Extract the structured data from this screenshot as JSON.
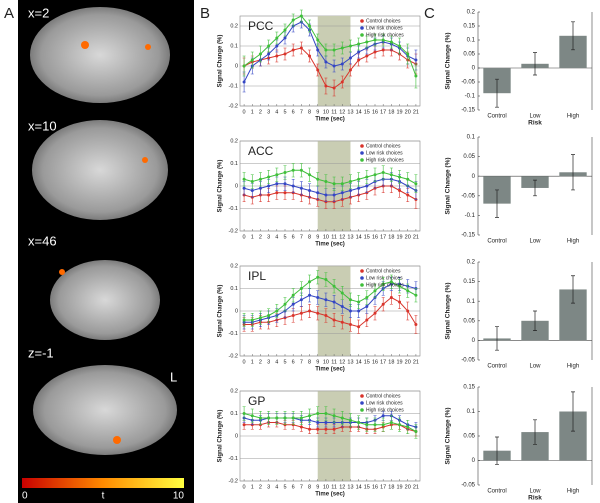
{
  "panel_labels": {
    "a": "A",
    "b": "B",
    "c": "C"
  },
  "panel_a": {
    "slices": [
      "x=2",
      "x=10",
      "x=46",
      "z=-1"
    ],
    "orientation_label": "L",
    "colorbar": {
      "min": 0,
      "label": "t",
      "max": 10
    }
  },
  "chart_data": [
    {
      "type": "line",
      "title": "PCC",
      "xlabel": "Time (sec)",
      "ylabel": "Signal Change (%)",
      "x": [
        0,
        1,
        2,
        3,
        4,
        5,
        6,
        7,
        8,
        9,
        10,
        11,
        12,
        13,
        14,
        15,
        16,
        17,
        18,
        19,
        20,
        21
      ],
      "xlim": [
        -0.5,
        21.5
      ],
      "xticks": [
        0,
        1,
        2,
        3,
        4,
        5,
        6,
        7,
        8,
        9,
        10,
        11,
        12,
        13,
        14,
        15,
        16,
        17,
        18,
        19,
        20,
        21
      ],
      "ylim": [
        -0.2,
        0.25
      ],
      "yticks": [
        -0.2,
        -0.1,
        0,
        0.1,
        0.2
      ],
      "grid": true,
      "shaded_span": [
        9,
        13
      ],
      "legend": "upper right",
      "series": [
        {
          "name": "Control choices",
          "color": "#d9342b",
          "values": [
            0,
            0.02,
            0.03,
            0.04,
            0.05,
            0.06,
            0.08,
            0.09,
            0.05,
            -0.02,
            -0.1,
            -0.11,
            -0.08,
            -0.02,
            0.03,
            0.05,
            0.07,
            0.08,
            0.08,
            0.06,
            0.03,
            0.01
          ],
          "errors": [
            0.04,
            0.03,
            0.03,
            0.03,
            0.03,
            0.03,
            0.03,
            0.03,
            0.03,
            0.03,
            0.04,
            0.04,
            0.03,
            0.03,
            0.03,
            0.03,
            0.03,
            0.03,
            0.03,
            0.03,
            0.04,
            0.05
          ]
        },
        {
          "name": "Low risk choices",
          "color": "#3446c4",
          "values": [
            -0.08,
            0,
            0.03,
            0.06,
            0.1,
            0.14,
            0.2,
            0.22,
            0.18,
            0.08,
            0.02,
            0,
            0.01,
            0.04,
            0.07,
            0.09,
            0.11,
            0.12,
            0.11,
            0.09,
            0.05,
            0.03
          ],
          "errors": [
            0.05,
            0.04,
            0.03,
            0.03,
            0.03,
            0.03,
            0.03,
            0.03,
            0.03,
            0.03,
            0.03,
            0.03,
            0.03,
            0.03,
            0.03,
            0.03,
            0.03,
            0.03,
            0.03,
            0.03,
            0.04,
            0.05
          ]
        },
        {
          "name": "High risk choices",
          "color": "#3fbf3a",
          "values": [
            0,
            0.03,
            0.06,
            0.1,
            0.14,
            0.18,
            0.23,
            0.25,
            0.2,
            0.13,
            0.08,
            0.08,
            0.09,
            0.1,
            0.11,
            0.12,
            0.13,
            0.13,
            0.12,
            0.1,
            0.06,
            -0.05
          ],
          "errors": [
            0.05,
            0.04,
            0.04,
            0.03,
            0.03,
            0.03,
            0.03,
            0.03,
            0.03,
            0.03,
            0.03,
            0.03,
            0.03,
            0.03,
            0.03,
            0.03,
            0.03,
            0.03,
            0.03,
            0.04,
            0.05,
            0.06
          ]
        }
      ]
    },
    {
      "type": "line",
      "title": "ACC",
      "xlabel": "Time (sec)",
      "ylabel": "Signal Change (%)",
      "x": [
        0,
        1,
        2,
        3,
        4,
        5,
        6,
        7,
        8,
        9,
        10,
        11,
        12,
        13,
        14,
        15,
        16,
        17,
        18,
        19,
        20,
        21
      ],
      "xlim": [
        -0.5,
        21.5
      ],
      "xticks": [
        0,
        1,
        2,
        3,
        4,
        5,
        6,
        7,
        8,
        9,
        10,
        11,
        12,
        13,
        14,
        15,
        16,
        17,
        18,
        19,
        20,
        21
      ],
      "ylim": [
        -0.2,
        0.2
      ],
      "yticks": [
        -0.2,
        -0.1,
        0,
        0.1,
        0.2
      ],
      "grid": true,
      "shaded_span": [
        9,
        13
      ],
      "legend": "upper right",
      "series": [
        {
          "name": "Control choices",
          "color": "#d9342b",
          "values": [
            -0.04,
            -0.05,
            -0.04,
            -0.04,
            -0.03,
            -0.03,
            -0.03,
            -0.04,
            -0.05,
            -0.06,
            -0.07,
            -0.07,
            -0.06,
            -0.05,
            -0.04,
            -0.03,
            -0.01,
            0,
            0,
            -0.02,
            -0.04,
            -0.06
          ],
          "errors": [
            0.03,
            0.03,
            0.03,
            0.03,
            0.03,
            0.03,
            0.03,
            0.03,
            0.03,
            0.03,
            0.03,
            0.03,
            0.03,
            0.03,
            0.03,
            0.03,
            0.03,
            0.03,
            0.03,
            0.03,
            0.03,
            0.04
          ]
        },
        {
          "name": "Low risk choices",
          "color": "#3446c4",
          "values": [
            -0.01,
            -0.02,
            -0.01,
            0,
            0.01,
            0.01,
            0,
            -0.01,
            -0.02,
            -0.03,
            -0.04,
            -0.04,
            -0.03,
            -0.02,
            -0.01,
            0,
            0.02,
            0.03,
            0.03,
            0.02,
            0,
            -0.02
          ],
          "errors": [
            0.03,
            0.03,
            0.03,
            0.03,
            0.03,
            0.03,
            0.03,
            0.03,
            0.03,
            0.03,
            0.03,
            0.03,
            0.03,
            0.03,
            0.03,
            0.03,
            0.03,
            0.03,
            0.03,
            0.03,
            0.03,
            0.04
          ]
        },
        {
          "name": "High risk choices",
          "color": "#3fbf3a",
          "values": [
            0.03,
            0.02,
            0.03,
            0.04,
            0.05,
            0.06,
            0.07,
            0.07,
            0.05,
            0.03,
            0.02,
            0.01,
            0.01,
            0.02,
            0.03,
            0.04,
            0.05,
            0.06,
            0.05,
            0.04,
            0.03,
            0.01
          ],
          "errors": [
            0.03,
            0.03,
            0.03,
            0.03,
            0.03,
            0.03,
            0.03,
            0.03,
            0.03,
            0.03,
            0.03,
            0.03,
            0.03,
            0.03,
            0.03,
            0.03,
            0.03,
            0.03,
            0.03,
            0.03,
            0.03,
            0.04
          ]
        }
      ]
    },
    {
      "type": "line",
      "title": "IPL",
      "xlabel": "Time (sec)",
      "ylabel": "Signal Change (%)",
      "x": [
        0,
        1,
        2,
        3,
        4,
        5,
        6,
        7,
        8,
        9,
        10,
        11,
        12,
        13,
        14,
        15,
        16,
        17,
        18,
        19,
        20,
        21
      ],
      "xlim": [
        -0.5,
        21.5
      ],
      "xticks": [
        0,
        1,
        2,
        3,
        4,
        5,
        6,
        7,
        8,
        9,
        10,
        11,
        12,
        13,
        14,
        15,
        16,
        17,
        18,
        19,
        20,
        21
      ],
      "ylim": [
        -0.2,
        0.2
      ],
      "yticks": [
        -0.2,
        -0.1,
        0,
        0.1,
        0.2
      ],
      "grid": true,
      "shaded_span": [
        9,
        13
      ],
      "legend": "upper right",
      "series": [
        {
          "name": "Control choices",
          "color": "#d9342b",
          "values": [
            -0.06,
            -0.06,
            -0.05,
            -0.05,
            -0.04,
            -0.03,
            -0.02,
            -0.01,
            0,
            -0.01,
            -0.02,
            -0.04,
            -0.05,
            -0.06,
            -0.07,
            -0.04,
            -0.01,
            0.03,
            0.06,
            0.04,
            0,
            -0.06
          ],
          "errors": [
            0.03,
            0.03,
            0.03,
            0.03,
            0.03,
            0.03,
            0.03,
            0.03,
            0.03,
            0.03,
            0.03,
            0.03,
            0.03,
            0.03,
            0.03,
            0.03,
            0.03,
            0.03,
            0.03,
            0.03,
            0.04,
            0.04
          ]
        },
        {
          "name": "Low risk choices",
          "color": "#3446c4",
          "values": [
            -0.05,
            -0.05,
            -0.04,
            -0.03,
            -0.02,
            0,
            0.03,
            0.05,
            0.07,
            0.06,
            0.05,
            0.04,
            0.02,
            0,
            0,
            0.02,
            0.06,
            0.1,
            0.12,
            0.12,
            0.11,
            0.1
          ],
          "errors": [
            0.03,
            0.03,
            0.03,
            0.03,
            0.03,
            0.03,
            0.03,
            0.03,
            0.03,
            0.03,
            0.03,
            0.03,
            0.03,
            0.03,
            0.03,
            0.03,
            0.03,
            0.03,
            0.03,
            0.03,
            0.03,
            0.03
          ]
        },
        {
          "name": "High risk choices",
          "color": "#3fbf3a",
          "values": [
            -0.04,
            -0.04,
            -0.03,
            -0.02,
            0,
            0.03,
            0.07,
            0.1,
            0.13,
            0.15,
            0.14,
            0.11,
            0.08,
            0.05,
            0.04,
            0.06,
            0.09,
            0.12,
            0.13,
            0.11,
            0.09,
            0.07
          ],
          "errors": [
            0.03,
            0.03,
            0.03,
            0.03,
            0.03,
            0.03,
            0.03,
            0.03,
            0.03,
            0.03,
            0.03,
            0.03,
            0.03,
            0.03,
            0.03,
            0.03,
            0.03,
            0.03,
            0.03,
            0.03,
            0.03,
            0.03
          ]
        }
      ]
    },
    {
      "type": "line",
      "title": "GP",
      "xlabel": "Time (sec)",
      "ylabel": "Signal Change (%)",
      "x": [
        0,
        1,
        2,
        3,
        4,
        5,
        6,
        7,
        8,
        9,
        10,
        11,
        12,
        13,
        14,
        15,
        16,
        17,
        18,
        19,
        20,
        21
      ],
      "xlim": [
        -0.5,
        21.5
      ],
      "xticks": [
        0,
        1,
        2,
        3,
        4,
        5,
        6,
        7,
        8,
        9,
        10,
        11,
        12,
        13,
        14,
        15,
        16,
        17,
        18,
        19,
        20,
        21
      ],
      "ylim": [
        -0.2,
        0.2
      ],
      "yticks": [
        -0.2,
        -0.1,
        0,
        0.1,
        0.2
      ],
      "grid": true,
      "shaded_span": [
        9,
        13
      ],
      "legend": "upper right",
      "series": [
        {
          "name": "Control choices",
          "color": "#d9342b",
          "values": [
            0.05,
            0.05,
            0.05,
            0.06,
            0.06,
            0.05,
            0.05,
            0.04,
            0.03,
            0.03,
            0.03,
            0.03,
            0.04,
            0.04,
            0.04,
            0.03,
            0.03,
            0.04,
            0.05,
            0.05,
            0.03,
            0.02
          ],
          "errors": [
            0.02,
            0.02,
            0.02,
            0.02,
            0.02,
            0.02,
            0.02,
            0.02,
            0.02,
            0.02,
            0.02,
            0.02,
            0.02,
            0.02,
            0.02,
            0.02,
            0.02,
            0.02,
            0.02,
            0.02,
            0.02,
            0.02
          ]
        },
        {
          "name": "Low risk choices",
          "color": "#3446c4",
          "values": [
            0.08,
            0.07,
            0.07,
            0.08,
            0.08,
            0.08,
            0.08,
            0.07,
            0.07,
            0.06,
            0.06,
            0.06,
            0.06,
            0.06,
            0.06,
            0.06,
            0.07,
            0.09,
            0.09,
            0.07,
            0.05,
            0.04
          ],
          "errors": [
            0.02,
            0.02,
            0.02,
            0.02,
            0.02,
            0.02,
            0.02,
            0.02,
            0.02,
            0.02,
            0.02,
            0.02,
            0.02,
            0.02,
            0.02,
            0.02,
            0.02,
            0.02,
            0.02,
            0.02,
            0.02,
            0.02
          ]
        },
        {
          "name": "High risk choices",
          "color": "#3fbf3a",
          "values": [
            0.1,
            0.09,
            0.08,
            0.08,
            0.08,
            0.08,
            0.08,
            0.08,
            0.09,
            0.1,
            0.1,
            0.09,
            0.08,
            0.07,
            0.06,
            0.05,
            0.05,
            0.05,
            0.06,
            0.05,
            0.04,
            0.02
          ],
          "errors": [
            0.03,
            0.03,
            0.03,
            0.03,
            0.03,
            0.03,
            0.03,
            0.03,
            0.03,
            0.03,
            0.03,
            0.03,
            0.03,
            0.03,
            0.03,
            0.03,
            0.03,
            0.03,
            0.03,
            0.03,
            0.03,
            0.03
          ]
        }
      ]
    },
    {
      "type": "bar",
      "ylabel": "Signal Change (%)",
      "xlabel": "Risk",
      "categories": [
        "Control",
        "Low",
        "High"
      ],
      "values": [
        -0.09,
        0.015,
        0.115
      ],
      "errors": [
        0.05,
        0.04,
        0.05
      ],
      "color": "#7d8785",
      "ylim": [
        -0.15,
        0.2
      ],
      "yticks": [
        -0.15,
        -0.1,
        -0.05,
        0,
        0.05,
        0.1,
        0.15,
        0.2
      ]
    },
    {
      "type": "bar",
      "ylabel": "Signal Change (%)",
      "categories": [
        "Control",
        "Low",
        "High"
      ],
      "values": [
        -0.07,
        -0.03,
        0.01
      ],
      "errors": [
        0.035,
        0.02,
        0.045
      ],
      "color": "#7d8785",
      "ylim": [
        -0.15,
        0.1
      ],
      "yticks": [
        -0.15,
        -0.1,
        -0.05,
        0,
        0.05,
        0.1
      ]
    },
    {
      "type": "bar",
      "ylabel": "Signal Change (%)",
      "categories": [
        "Control",
        "Low",
        "High"
      ],
      "values": [
        0.005,
        0.05,
        0.13
      ],
      "errors": [
        0.03,
        0.025,
        0.035
      ],
      "color": "#7d8785",
      "ylim": [
        -0.05,
        0.2
      ],
      "yticks": [
        -0.05,
        0,
        0.05,
        0.1,
        0.15,
        0.2
      ]
    },
    {
      "type": "bar",
      "ylabel": "Signal Change (%)",
      "xlabel": "Risk",
      "categories": [
        "Control",
        "Low",
        "High"
      ],
      "values": [
        0.02,
        0.058,
        0.1
      ],
      "errors": [
        0.028,
        0.025,
        0.04
      ],
      "color": "#7d8785",
      "ylim": [
        -0.05,
        0.15
      ],
      "yticks": [
        -0.05,
        0,
        0.05,
        0.1,
        0.15
      ]
    }
  ]
}
